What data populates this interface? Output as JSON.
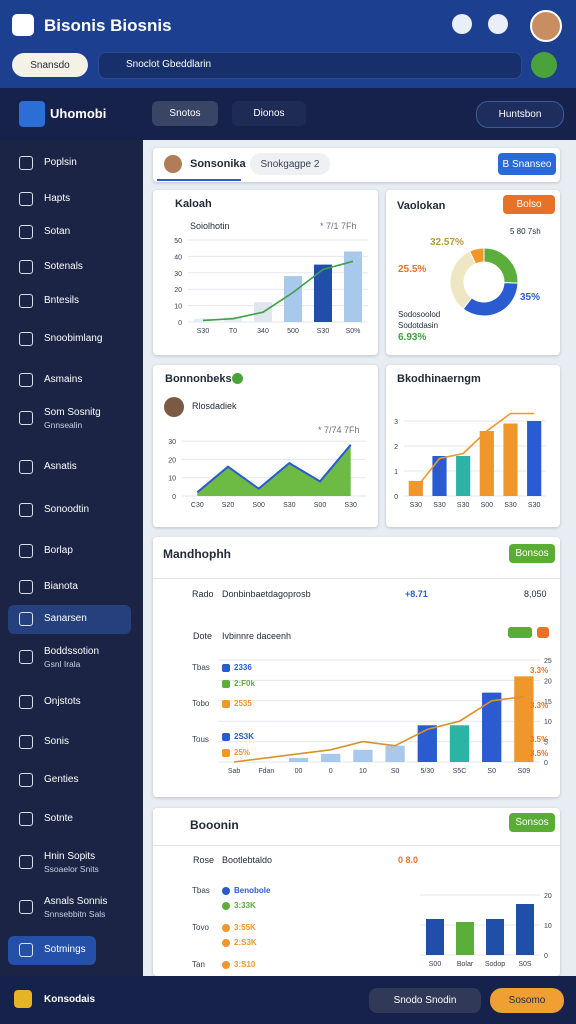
{
  "header": {
    "title": "Bisonis Biosnis",
    "button": "Snansdo",
    "search": "Snoclot Gbeddlarin"
  },
  "toolbar": {
    "brand": "Uhomobi",
    "tabs": [
      "Snotos",
      "Dionos"
    ],
    "action": "Huntsbon"
  },
  "sidebar": {
    "active": 12,
    "highlight": 20,
    "items": [
      {
        "label": "Poplsin"
      },
      {
        "label": "Hapts"
      },
      {
        "label": "Sotan"
      },
      {
        "label": "Sotenals"
      },
      {
        "label": "Bntesils"
      },
      {
        "label": "Snoobimlang"
      },
      {
        "label": "Asmains"
      },
      {
        "label": "Som Sosnitg",
        "sub": "Gnnsealin"
      },
      {
        "label": "Asnatis"
      },
      {
        "label": "Sonoodtin"
      },
      {
        "label": "Borlap"
      },
      {
        "label": "Bianota"
      },
      {
        "label": "Sanarsen"
      },
      {
        "label": "Boddssotion",
        "sub": "Gsnl Irala"
      },
      {
        "label": "Onjstots"
      },
      {
        "label": "Sonis"
      },
      {
        "label": "Genties"
      },
      {
        "label": "Sotnte"
      },
      {
        "label": "Hnin Sopits",
        "sub": "Ssoaelor Snits"
      },
      {
        "label": "Asnals Sonnis",
        "sub": "Snnsebbitn Sals"
      },
      {
        "label": "Sotmings"
      }
    ]
  },
  "tabs": {
    "user": "Sonsonika",
    "chip": "Snokgagpe 2",
    "button": "B Snanseo"
  },
  "cards": [
    {
      "title": "Kaloah",
      "subtitle": "Soiolhotin",
      "note": "* 7/1 7Fh"
    },
    {
      "title": "Vaolokan",
      "button": "Bolso",
      "note": "5 80 7sh",
      "caption": [
        "Sodosoolod",
        "Sodotdasin"
      ]
    },
    {
      "title": "Bonnonbeks",
      "subtitle": "Rlosdadiek",
      "note": "* 7/74 7Fh"
    },
    {
      "title": "Bkodhinaerngm"
    },
    {
      "title": "Mandhophh",
      "button": "Bonsos",
      "rows": [
        {
          "tag": "Rado",
          "text": "Donbinbaetdagoprosb",
          "delta": "+8.71",
          "value": "8,050"
        },
        {
          "tag": "Dote",
          "text": "Ivbinnre daceenh"
        }
      ],
      "side": [
        "Tbas",
        "Tobo",
        "Tous"
      ],
      "legend": [
        "2336",
        "2:F0k",
        "2535",
        "2S3K",
        "25%"
      ],
      "notes": [
        "3.3%",
        "3.3%",
        "3.5%",
        "3.5%"
      ]
    },
    {
      "title": "Booonin",
      "button": "Sonsos",
      "rows": [
        {
          "tag": "Rose",
          "text": "Bootlebtaldo",
          "delta": "0 8.0"
        }
      ],
      "side": [
        "Tbas",
        "Tovo",
        "Tan"
      ],
      "legend": [
        "Benobole",
        "3:33K",
        "3:55K",
        "2:S3K",
        "3:S10"
      ]
    }
  ],
  "footer": {
    "brand": "Konsodais",
    "button": "Snodo Snodin",
    "action": "Sosomo"
  },
  "chart_data": [
    {
      "type": "bar",
      "categories": [
        "S30",
        "T0",
        "340",
        "500",
        "S30",
        "S0%"
      ],
      "ylim": [
        0,
        50
      ],
      "yticks": [
        0,
        10,
        20,
        30,
        40,
        50
      ],
      "grid": true,
      "series": [
        {
          "type": "bar",
          "colors": [
            "#e4ecf5",
            "#e4ecf5",
            "#dfe6ee",
            "#a9c9ec",
            "#1f4fa8",
            "#a9c9ec"
          ],
          "values": [
            2,
            3,
            12,
            28,
            35,
            43
          ]
        },
        {
          "type": "line",
          "color": "#3fa046",
          "values": [
            1,
            2,
            6,
            18,
            32,
            37
          ]
        }
      ]
    },
    {
      "type": "pie",
      "values": [
        25.5,
        35,
        32.57,
        6.93
      ],
      "value_labels": [
        "25.5%",
        "35%",
        "32.57%",
        "6.93%"
      ],
      "colors": [
        "#5cae3a",
        "#2a5bd0",
        "#efe7c4",
        "#f0962a"
      ]
    },
    {
      "type": "area",
      "categories": [
        "C30",
        "S20",
        "S00",
        "S30",
        "S00",
        "S30"
      ],
      "ylim": [
        0,
        35
      ],
      "yticks": [
        0,
        10,
        20,
        30
      ],
      "grid": true,
      "series": [
        {
          "type": "area",
          "color": "#6dbb45",
          "line_color": "#2a5bd0",
          "values": [
            2,
            16,
            4,
            18,
            8,
            28
          ]
        }
      ]
    },
    {
      "type": "bar",
      "categories": [
        "S30",
        "S30",
        "S30",
        "S00",
        "S30",
        "S30"
      ],
      "ylim": [
        0,
        4
      ],
      "yticks": [
        0,
        1,
        2,
        3
      ],
      "grid": true,
      "series": [
        {
          "type": "bar",
          "colors": [
            "#f0962a",
            "#2a5bd0",
            "#2bb3a6",
            "#f0962a",
            "#f0962a",
            "#2a5bd0"
          ],
          "values": [
            0.6,
            1.6,
            1.6,
            2.6,
            2.9,
            3.0
          ]
        },
        {
          "type": "line",
          "color": "#f0962a",
          "values": [
            0.3,
            1.5,
            1.7,
            2.6,
            3.3,
            3.3
          ]
        }
      ]
    },
    {
      "type": "bar",
      "categories": [
        "Sab",
        "Fdan",
        "00",
        "0",
        "10",
        "S0",
        "5/30",
        "S5C",
        "S0",
        "S09"
      ],
      "ylim": [
        0,
        25
      ],
      "yticks": [
        0,
        5,
        10,
        15,
        20,
        25
      ],
      "grid": true,
      "series": [
        {
          "type": "bar",
          "colors": [
            "#a9c9ec",
            "#a9c9ec",
            "#a9c9ec",
            "#a9c9ec",
            "#a9c9ec",
            "#a9c9ec",
            "#2a5bd0",
            "#2bb3a6",
            "#2a5bd0",
            "#f0962a"
          ],
          "values": [
            0,
            0,
            1,
            2,
            3,
            4,
            9,
            9,
            17,
            21
          ]
        },
        {
          "type": "line",
          "color": "#d9922a",
          "values": [
            0,
            1,
            2,
            3,
            5,
            4,
            8,
            10,
            15,
            16
          ]
        }
      ]
    },
    {
      "type": "bar",
      "categories": [
        "S00",
        "Bolar",
        "Sodop",
        "S0S"
      ],
      "ylim": [
        0,
        20
      ],
      "yticks": [
        0,
        10,
        20
      ],
      "grid": true,
      "series": [
        {
          "type": "bar",
          "colors": [
            "#1f4fa8",
            "#5cae3a",
            "#1f4fa8",
            "#1f4fa8"
          ],
          "values": [
            12,
            11,
            12,
            17
          ]
        }
      ]
    }
  ]
}
